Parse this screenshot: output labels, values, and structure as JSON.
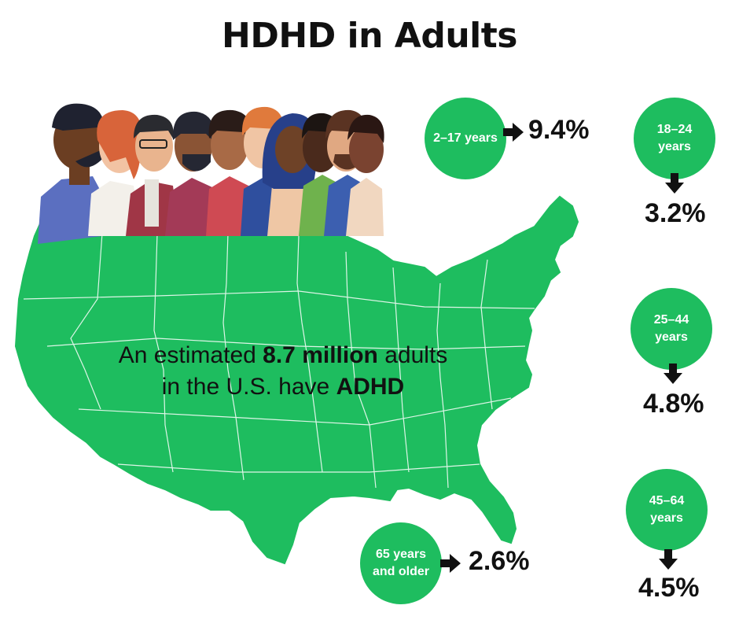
{
  "title": "HDHD in Adults",
  "caption": {
    "pre": "An estimated",
    "highlight": "8.7 million",
    "mid": "adults",
    "line2": "in the U.S. have",
    "condition": "ADHD"
  },
  "colors": {
    "map_green": "#1ebd5f",
    "circle_green": "#1ebd5f",
    "text": "#111111"
  },
  "stats": [
    {
      "id": "2-17",
      "label": "2–17 years",
      "value": "9.4%",
      "arrow": "right"
    },
    {
      "id": "18-24",
      "label": "18–24 years",
      "value": "3.2%",
      "arrow": "down"
    },
    {
      "id": "25-44",
      "label": "25–44 years",
      "value": "4.8%",
      "arrow": "down"
    },
    {
      "id": "45-64",
      "label": "45–64 years",
      "value": "4.5%",
      "arrow": "down"
    },
    {
      "id": "65plus",
      "label": "65 years and older",
      "value": "2.6%",
      "arrow": "right"
    }
  ]
}
